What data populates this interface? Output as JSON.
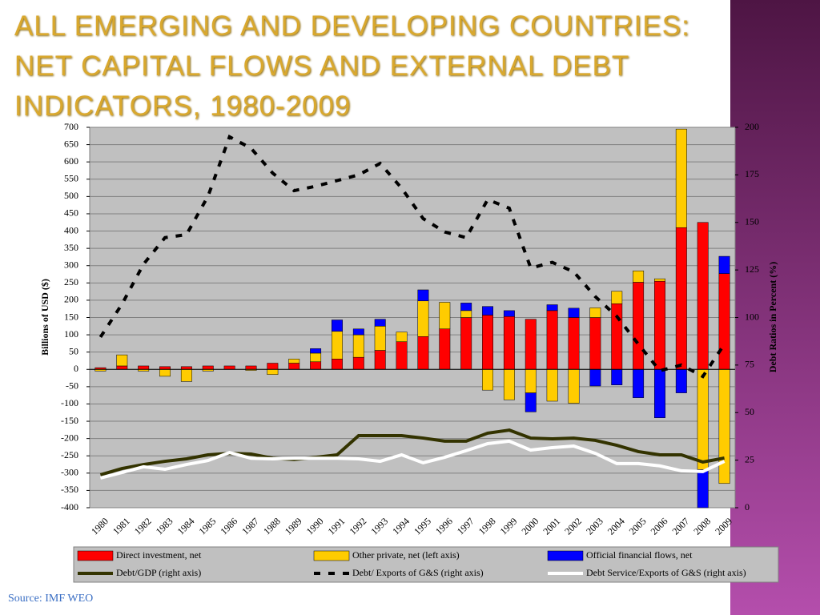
{
  "chart_data": {
    "type": "bar",
    "title": "ALL EMERGING AND DEVELOPING COUNTRIES: NET CAPITAL FLOWS AND EXTERNAL DEBT INDICATORS, 1980-2009",
    "y_label": "Billions of USD ($)",
    "y2_label": "Debt Ratios in Percent (%)",
    "categories": [
      "1980",
      "1981",
      "1982",
      "1983",
      "1984",
      "1985",
      "1986",
      "1987",
      "1988",
      "1989",
      "1990",
      "1991",
      "1992",
      "1993",
      "1994",
      "1995",
      "1996",
      "1997",
      "1998",
      "1999",
      "2000",
      "2001",
      "2002",
      "2003",
      "2004",
      "2005",
      "2006",
      "2007",
      "2008",
      "2009"
    ],
    "series": [
      {
        "name": "Direct investment, net",
        "type": "bar",
        "color": "#ff0000",
        "values": [
          5,
          10,
          10,
          8,
          8,
          10,
          10,
          10,
          18,
          18,
          22,
          30,
          35,
          55,
          80,
          95,
          117,
          150,
          157,
          153,
          145,
          170,
          150,
          150,
          190,
          252,
          255,
          410,
          425,
          277
        ]
      },
      {
        "name": "Other private, net (left axis)",
        "type": "bar",
        "color": "#ffcc00",
        "values": [
          -5,
          32,
          -5,
          -20,
          -35,
          -5,
          0,
          -3,
          -15,
          12,
          25,
          80,
          65,
          70,
          28,
          103,
          77,
          20,
          -60,
          -88,
          -68,
          -92,
          -98,
          28,
          36,
          33,
          7,
          285,
          -290,
          -330
        ]
      },
      {
        "name": "Official financial flows, net",
        "type": "bar",
        "color": "#0000ff",
        "values": [
          0,
          0,
          0,
          0,
          0,
          0,
          0,
          0,
          0,
          0,
          13,
          33,
          17,
          20,
          0,
          32,
          0,
          22,
          25,
          17,
          -55,
          17,
          27,
          -48,
          -45,
          -82,
          -140,
          -68,
          -110,
          50
        ]
      },
      {
        "name": "Debt/GDP (right axis)",
        "type": "line",
        "axis": "y2",
        "color": "#333300",
        "values": [
          17.3,
          20.6,
          22.7,
          24.4,
          25.7,
          27.8,
          28.6,
          28.2,
          26,
          25.3,
          26.5,
          27.8,
          37.9,
          37.9,
          37.9,
          36.6,
          35,
          35,
          39.2,
          40.8,
          36.6,
          36.2,
          36.6,
          35.4,
          32.8,
          29.5,
          27.8,
          27.8,
          24,
          26.1
        ]
      },
      {
        "name": "Debt/ Exports of G&S (right axis)",
        "type": "line",
        "axis": "y2",
        "dash": true,
        "color": "#000000",
        "values": [
          89.7,
          107,
          128,
          142,
          143.6,
          163.8,
          195,
          189,
          176,
          166.7,
          169,
          172,
          175,
          181,
          168,
          152,
          145,
          142,
          162,
          157.5,
          126,
          129,
          124,
          111,
          100.6,
          86,
          72,
          75,
          69,
          86
        ]
      },
      {
        "name": "Debt Service/Exports of G&S (right axis)",
        "type": "line",
        "axis": "y2",
        "color": "#ffffff",
        "values": [
          15.6,
          18.5,
          21.5,
          20.2,
          22.7,
          24.8,
          29,
          26,
          25.7,
          26,
          26,
          26,
          25.7,
          24.4,
          27.8,
          23.6,
          26.5,
          30,
          33.7,
          35,
          30.3,
          31.6,
          32.4,
          28.6,
          23.2,
          23.2,
          22,
          19.4,
          19,
          24.4
        ]
      }
    ],
    "ylim": [
      -400,
      700
    ],
    "yticks": [
      -400,
      -350,
      -300,
      -250,
      -200,
      -150,
      -100,
      -50,
      0,
      50,
      100,
      150,
      200,
      250,
      300,
      350,
      400,
      450,
      500,
      550,
      600,
      650,
      700
    ],
    "y2lim": [
      0,
      200
    ],
    "y2ticks": [
      0,
      25,
      50,
      75,
      100,
      125,
      150,
      175,
      200
    ],
    "grid": true
  },
  "source": "Source:  IMF WEO"
}
